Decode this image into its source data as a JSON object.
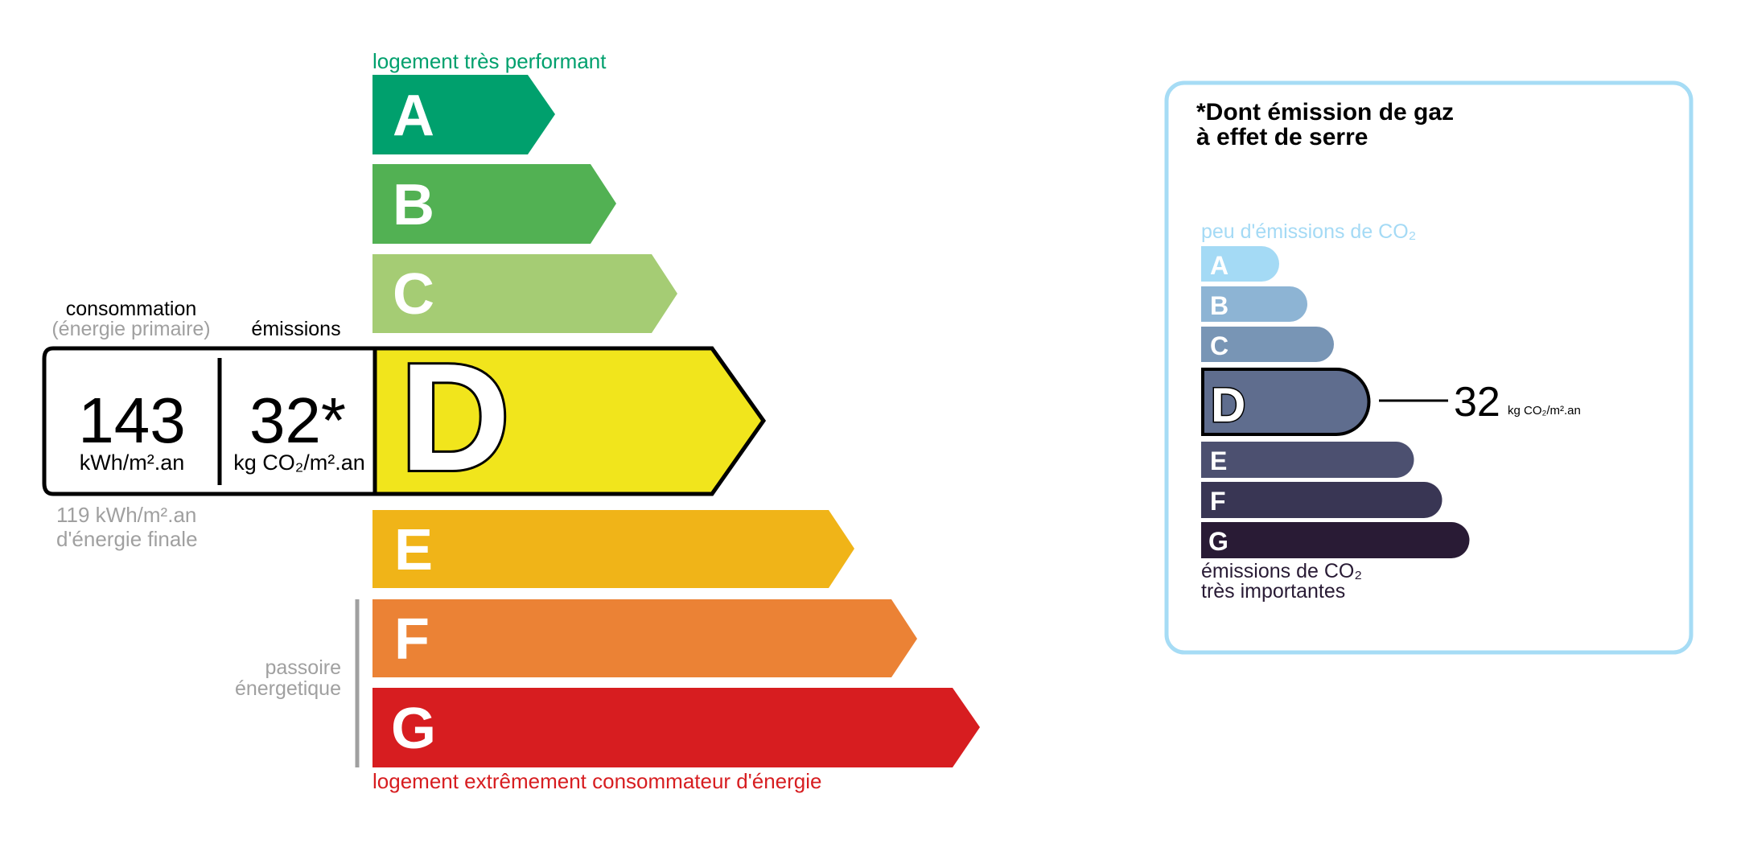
{
  "energy_label": {
    "top_caption": "logement très performant",
    "bottom_caption": "logement extrêmement consommateur d'énergie",
    "passoire_line1": "passoire",
    "passoire_line2": "énergetique",
    "classes": [
      {
        "letter": "A",
        "color": "#00a06d"
      },
      {
        "letter": "B",
        "color": "#52b153"
      },
      {
        "letter": "C",
        "color": "#a5cc74"
      },
      {
        "letter": "D",
        "color": "#f1e51c"
      },
      {
        "letter": "E",
        "color": "#f0b418"
      },
      {
        "letter": "F",
        "color": "#eb8235"
      },
      {
        "letter": "G",
        "color": "#d71d20"
      }
    ],
    "current_class": "D",
    "consumption_label": "consommation",
    "consumption_sublabel": "(énergie primaire)",
    "emissions_label": "émissions",
    "consumption_value": "143",
    "consumption_unit": "kWh/m².an",
    "emissions_value": "32*",
    "emissions_unit": "kg CO₂/m².an",
    "final_energy_line1": "119 kWh/m².an",
    "final_energy_line2": "d'énergie finale"
  },
  "ges_label": {
    "title_line1": "*Dont émission de gaz",
    "title_line2": "à effet de serre",
    "top_caption": "peu d'émissions de CO₂",
    "bottom_caption_line1": "émissions de CO₂",
    "bottom_caption_line2": "très importantes",
    "classes": [
      {
        "letter": "A",
        "color": "#a4daf5"
      },
      {
        "letter": "B",
        "color": "#8db4d4"
      },
      {
        "letter": "C",
        "color": "#7895b5"
      },
      {
        "letter": "D",
        "color": "#5f6d8e"
      },
      {
        "letter": "E",
        "color": "#4c5070"
      },
      {
        "letter": "F",
        "color": "#393654"
      },
      {
        "letter": "G",
        "color": "#291b35"
      }
    ],
    "current_class": "D",
    "value": "32",
    "unit": "kg CO₂/m².an",
    "border_color": "#a6dcf5"
  }
}
